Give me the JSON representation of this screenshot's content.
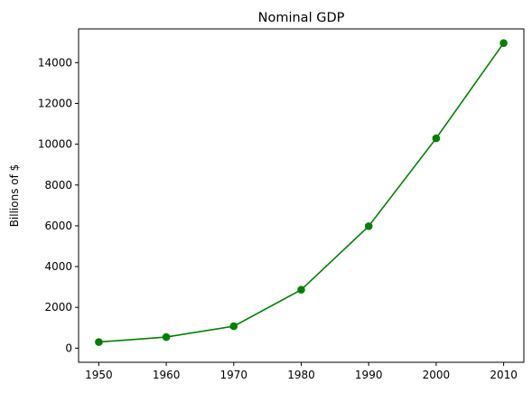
{
  "chart_data": {
    "type": "line",
    "title": "Nominal GDP",
    "xlabel": "",
    "ylabel": "Billions of $",
    "xlim": [
      1947,
      2013
    ],
    "ylim": [
      -693,
      15653
    ],
    "x_ticks": [
      1950,
      1960,
      1970,
      1980,
      1990,
      2000,
      2010
    ],
    "y_ticks": [
      0,
      2000,
      4000,
      6000,
      8000,
      10000,
      12000,
      14000
    ],
    "grid": false,
    "series": [
      {
        "color": "#008000",
        "marker": "circle",
        "x": [
          1950,
          1960,
          1970,
          1980,
          1990,
          2000,
          2010
        ],
        "y": [
          300.2,
          543.3,
          1075.9,
          2862.5,
          5979.6,
          10289.7,
          14958.3
        ]
      }
    ]
  }
}
